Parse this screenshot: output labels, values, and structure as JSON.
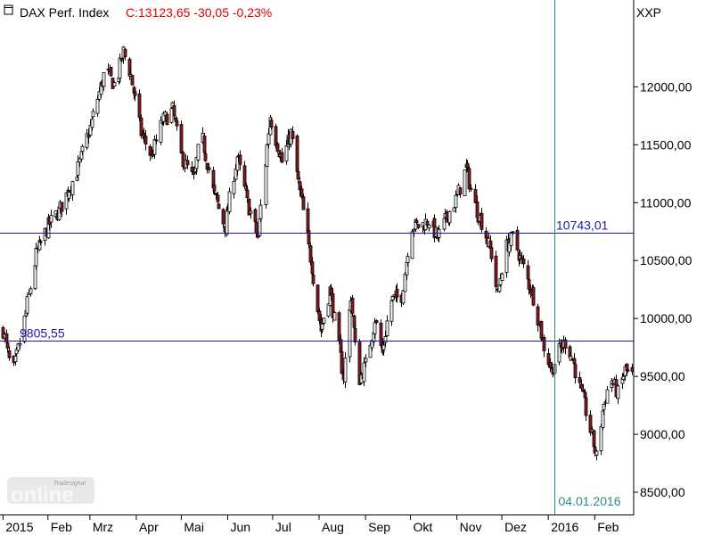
{
  "header": {
    "icon": "window-square-icon",
    "name": "DAX Perf. Index",
    "quote": "C:13123,65 -30,05 -0,23%",
    "quote_color": "#e00000"
  },
  "symbol_label": "XXP",
  "watermark": {
    "brand": "Tradesignal",
    "word": "online"
  },
  "colors": {
    "up": "#ffffff",
    "down": "#8b1a1a",
    "line": "#1a1aa8",
    "cursor": "#2f8a8a",
    "axis": "#000000"
  },
  "chart_data": {
    "type": "candlestick",
    "series_name": "DAX Perf. Index",
    "ylim": [
      8300,
      12750
    ],
    "y_ticks": [
      "12000,00",
      "11500,00",
      "11000,00",
      "10500,00",
      "10000,00",
      "9500,00",
      "9000,00",
      "8500,00"
    ],
    "y_tick_values": [
      12000,
      11500,
      11000,
      10500,
      10000,
      9500,
      9000,
      8500
    ],
    "x_labels": [
      "2015",
      "Feb",
      "Mrz",
      "Apr",
      "Mai",
      "Jun",
      "Jul",
      "Aug",
      "Sep",
      "Okt",
      "Nov",
      "Dez",
      "2016",
      "Feb"
    ],
    "x_label_days": [
      0,
      30,
      58,
      89,
      119,
      150,
      180,
      211,
      242,
      272,
      303,
      333,
      364,
      395
    ],
    "x_range_days": [
      -2,
      421
    ],
    "horizontal_lines": [
      {
        "value": 10743.01,
        "label": "10743,01"
      },
      {
        "value": 9805.55,
        "label": "9805,55"
      }
    ],
    "cursor": {
      "date": "04.01.2016",
      "day": 368
    },
    "path_days": [
      0,
      6,
      12,
      22,
      30,
      38,
      50,
      58,
      68,
      75,
      80,
      85,
      92,
      99,
      106,
      113,
      119,
      127,
      132,
      140,
      148,
      156,
      163,
      170,
      178,
      186,
      192,
      199,
      206,
      212,
      218,
      222,
      227,
      232,
      237,
      242,
      248,
      253,
      258,
      266,
      272,
      279,
      284,
      290,
      297,
      303,
      309,
      314,
      320,
      326,
      330,
      335,
      340,
      343,
      348,
      355,
      360,
      366,
      370,
      375,
      380,
      385,
      390,
      396,
      400,
      405,
      410,
      415,
      420
    ],
    "path_values": [
      9900,
      9500,
      9850,
      10550,
      10800,
      10950,
      11300,
      11650,
      12150,
      12000,
      12300,
      12100,
      11600,
      11400,
      11700,
      11800,
      11400,
      11200,
      11600,
      11100,
      10800,
      11400,
      11000,
      10700,
      11750,
      11350,
      11600,
      11000,
      10450,
      9900,
      10250,
      9900,
      9500,
      10200,
      9450,
      9600,
      10000,
      9700,
      10150,
      10200,
      10800,
      10800,
      10850,
      10700,
      10900,
      11050,
      11300,
      11000,
      10800,
      10550,
      10200,
      10600,
      10700,
      10600,
      10400,
      10150,
      9800,
      9550,
      9700,
      9800,
      9650,
      9400,
      9150,
      8800,
      9200,
      9500,
      9350,
      9550,
      9500
    ]
  }
}
